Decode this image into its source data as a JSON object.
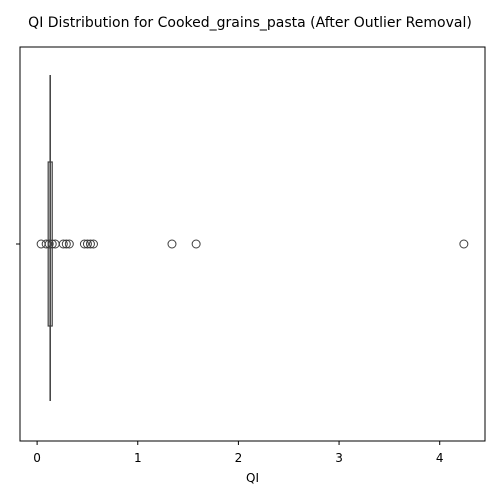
{
  "chart_data": {
    "type": "box",
    "title": "QI Distribution for Cooked_grains_pasta (After Outlier Removal)",
    "xlabel": "QI",
    "categories": [
      null
    ],
    "xlim": [
      -0.17,
      4.45
    ],
    "xticks": [
      0,
      1,
      2,
      3,
      4
    ],
    "box": {
      "q1": 0.11,
      "median": 0.13,
      "q3": 0.15
    },
    "outliers": [
      0.04,
      0.09,
      0.12,
      0.15,
      0.18,
      0.26,
      0.29,
      0.32,
      0.47,
      0.5,
      0.53,
      0.56,
      1.34,
      1.58,
      4.24
    ],
    "color": "#3d3d3d"
  }
}
